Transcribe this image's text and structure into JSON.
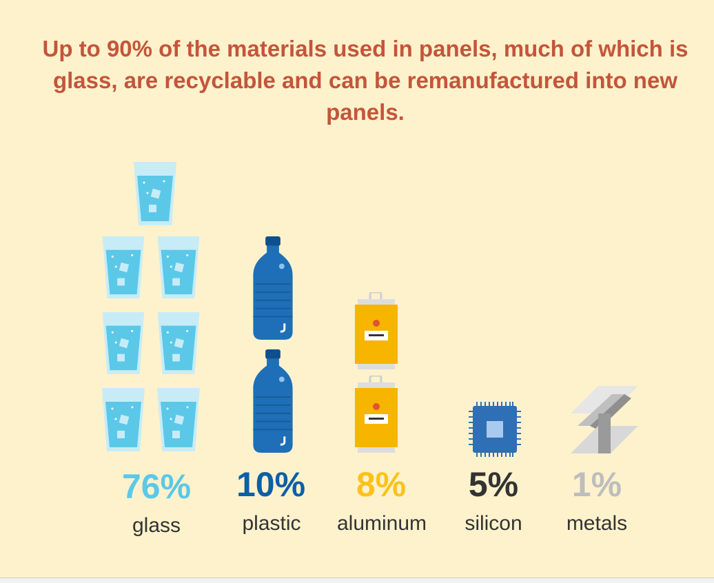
{
  "title": "Up to 90% of the materials used in panels, much of which is glass, are recyclable and can be remanufactured into new panels.",
  "items": [
    {
      "percent": "76%",
      "label": "glass"
    },
    {
      "percent": "10%",
      "label": "plastic"
    },
    {
      "percent": "8%",
      "label": "aluminum"
    },
    {
      "percent": "5%",
      "label": "silicon"
    },
    {
      "percent": "1%",
      "label": "metals"
    }
  ]
}
